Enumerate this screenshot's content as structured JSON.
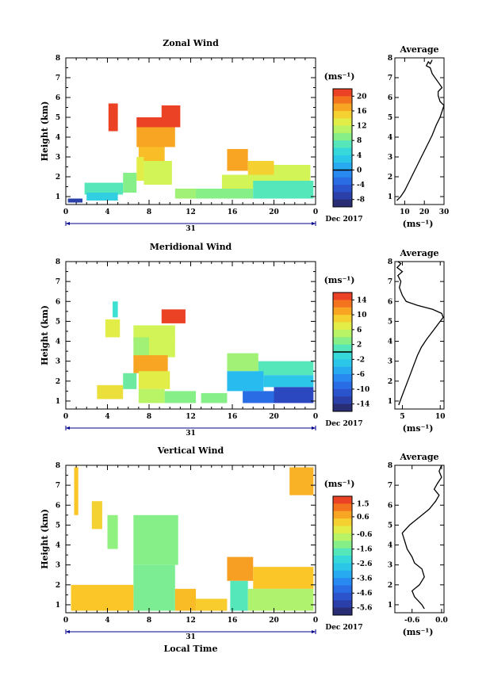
{
  "chart_data": [
    {
      "type": "heatmap",
      "title": "Zonal Wind",
      "xlabel": "",
      "ylabel": "Height (km)",
      "xticks": [
        "0",
        "4",
        "8",
        "12",
        "16",
        "20",
        "0"
      ],
      "yticks": [
        "1",
        "2",
        "3",
        "4",
        "5",
        "6",
        "7",
        "8"
      ],
      "xlim": [
        0,
        24
      ],
      "ylim": [
        0.6,
        8.0
      ],
      "date_label": "31",
      "month_label": "Dec 2017",
      "colorbar": {
        "unit": "(ms⁻¹)",
        "ticks": [
          "20",
          "16",
          "12",
          "8",
          "4",
          "0",
          "-4",
          "-8"
        ],
        "min": -10,
        "max": 22,
        "zero_line": 0
      },
      "patches": [
        {
          "x0": 4.1,
          "x1": 5.0,
          "y0": 4.3,
          "y1": 5.7,
          "v": 21
        },
        {
          "x0": 6.8,
          "x1": 9.5,
          "y0": 4.5,
          "y1": 5.0,
          "v": 21
        },
        {
          "x0": 9.2,
          "x1": 11.0,
          "y0": 4.5,
          "y1": 5.6,
          "v": 21
        },
        {
          "x0": 6.8,
          "x1": 10.5,
          "y0": 3.5,
          "y1": 4.5,
          "v": 17
        },
        {
          "x0": 7.0,
          "x1": 9.5,
          "y0": 2.8,
          "y1": 3.5,
          "v": 16
        },
        {
          "x0": 6.8,
          "x1": 7.5,
          "y0": 1.8,
          "y1": 3.0,
          "v": 13
        },
        {
          "x0": 7.5,
          "x1": 10.2,
          "y0": 1.6,
          "y1": 2.8,
          "v": 12
        },
        {
          "x0": 5.5,
          "x1": 6.8,
          "y0": 1.2,
          "y1": 2.2,
          "v": 9
        },
        {
          "x0": 1.8,
          "x1": 5.5,
          "y0": 1.1,
          "y1": 1.7,
          "v": 7
        },
        {
          "x0": 0.2,
          "x1": 1.6,
          "y0": 0.7,
          "y1": 0.9,
          "v": -7
        },
        {
          "x0": 2.0,
          "x1": 5.0,
          "y0": 0.8,
          "y1": 1.2,
          "v": 4
        },
        {
          "x0": 15.5,
          "x1": 17.5,
          "y0": 2.3,
          "y1": 3.4,
          "v": 17
        },
        {
          "x0": 17.5,
          "x1": 20.0,
          "y0": 2.0,
          "y1": 2.8,
          "v": 15
        },
        {
          "x0": 20.0,
          "x1": 23.5,
          "y0": 1.8,
          "y1": 2.6,
          "v": 12
        },
        {
          "x0": 15.0,
          "x1": 20.0,
          "y0": 1.4,
          "y1": 2.1,
          "v": 12
        },
        {
          "x0": 12.0,
          "x1": 18.0,
          "y0": 0.9,
          "y1": 1.4,
          "v": 9
        },
        {
          "x0": 18.0,
          "x1": 23.8,
          "y0": 0.9,
          "y1": 1.8,
          "v": 7
        },
        {
          "x0": 10.5,
          "x1": 12.5,
          "y0": 0.9,
          "y1": 1.4,
          "v": 10
        }
      ],
      "average_profile": {
        "title": "Average",
        "xlabel": "(ms⁻¹)",
        "xticks": [
          "10",
          "20",
          "30"
        ],
        "xlim": [
          5,
          30
        ],
        "x": [
          6,
          8,
          10,
          12,
          14,
          16,
          18,
          20,
          22,
          24,
          26,
          28,
          29,
          30,
          28,
          27,
          27,
          28,
          29,
          24,
          23,
          21,
          22,
          23,
          24
        ],
        "y": [
          0.8,
          1.0,
          1.3,
          1.7,
          2.1,
          2.5,
          2.9,
          3.3,
          3.7,
          4.1,
          4.6,
          5.0,
          5.3,
          5.6,
          5.8,
          6.1,
          6.3,
          6.4,
          6.5,
          7.2,
          7.5,
          7.6,
          7.8,
          7.7,
          7.9
        ]
      }
    },
    {
      "type": "heatmap",
      "title": "Meridional Wind",
      "xlabel": "",
      "ylabel": "Height (km)",
      "xticks": [
        "0",
        "4",
        "8",
        "12",
        "16",
        "20",
        "0"
      ],
      "yticks": [
        "1",
        "2",
        "3",
        "4",
        "5",
        "6",
        "7",
        "8"
      ],
      "xlim": [
        0,
        24
      ],
      "ylim": [
        0.6,
        8.0
      ],
      "date_label": "31",
      "month_label": "Dec 2017",
      "colorbar": {
        "unit": "(ms⁻¹)",
        "ticks": [
          "14",
          "10",
          "6",
          "2",
          "-2",
          "-6",
          "-10",
          "-14"
        ],
        "min": -16,
        "max": 16,
        "zero_line": 0
      },
      "patches": [
        {
          "x0": 3.8,
          "x1": 5.2,
          "y0": 4.2,
          "y1": 5.1,
          "v": 7
        },
        {
          "x0": 4.5,
          "x1": 5.0,
          "y0": 5.2,
          "y1": 6.0,
          "v": 0
        },
        {
          "x0": 9.2,
          "x1": 11.5,
          "y0": 4.9,
          "y1": 5.6,
          "v": 15
        },
        {
          "x0": 6.5,
          "x1": 10.5,
          "y0": 4.0,
          "y1": 4.8,
          "v": 6
        },
        {
          "x0": 6.5,
          "x1": 8.0,
          "y0": 3.2,
          "y1": 4.2,
          "v": 4
        },
        {
          "x0": 8.0,
          "x1": 10.5,
          "y0": 3.2,
          "y1": 4.2,
          "v": 6
        },
        {
          "x0": 6.5,
          "x1": 9.8,
          "y0": 2.4,
          "y1": 3.3,
          "v": 11
        },
        {
          "x0": 7.0,
          "x1": 10.0,
          "y0": 1.6,
          "y1": 2.5,
          "v": 7
        },
        {
          "x0": 7.0,
          "x1": 9.5,
          "y0": 0.9,
          "y1": 1.6,
          "v": 5
        },
        {
          "x0": 3.0,
          "x1": 5.5,
          "y0": 1.1,
          "y1": 1.8,
          "v": 8
        },
        {
          "x0": 5.5,
          "x1": 6.8,
          "y0": 1.6,
          "y1": 2.4,
          "v": 2
        },
        {
          "x0": 9.5,
          "x1": 12.5,
          "y0": 0.9,
          "y1": 1.5,
          "v": 3
        },
        {
          "x0": 15.5,
          "x1": 18.5,
          "y0": 2.5,
          "y1": 3.4,
          "v": 4
        },
        {
          "x0": 18.5,
          "x1": 23.8,
          "y0": 2.3,
          "y1": 3.0,
          "v": 1
        },
        {
          "x0": 15.5,
          "x1": 19.0,
          "y0": 1.5,
          "y1": 2.5,
          "v": -4
        },
        {
          "x0": 19.0,
          "x1": 23.8,
          "y0": 1.7,
          "y1": 2.3,
          "v": -3
        },
        {
          "x0": 17.0,
          "x1": 20.0,
          "y0": 0.9,
          "y1": 1.5,
          "v": -9
        },
        {
          "x0": 20.0,
          "x1": 23.8,
          "y0": 0.9,
          "y1": 1.7,
          "v": -12
        },
        {
          "x0": 13.0,
          "x1": 15.5,
          "y0": 0.9,
          "y1": 1.4,
          "v": 3
        }
      ],
      "average_profile": {
        "title": "Average",
        "xlabel": "(ms⁻¹)",
        "xticks": [
          "5",
          "10"
        ],
        "xlim": [
          4,
          10.5
        ],
        "x": [
          4.5,
          5.0,
          5.5,
          6.0,
          6.5,
          7.0,
          7.5,
          8.2,
          9.0,
          9.8,
          10.4,
          10.2,
          9.0,
          7.0,
          5.5,
          5.0,
          4.6,
          4.8,
          4.4,
          5.0,
          4.3,
          4.8,
          4.4
        ],
        "y": [
          0.8,
          1.3,
          1.8,
          2.3,
          2.8,
          3.3,
          3.7,
          4.1,
          4.5,
          4.9,
          5.2,
          5.4,
          5.6,
          5.8,
          6.0,
          6.3,
          6.7,
          7.0,
          7.3,
          7.5,
          7.7,
          7.9,
          8.0
        ]
      }
    },
    {
      "type": "heatmap",
      "title": "Vertical Wind",
      "xlabel": "Local Time",
      "ylabel": "Height (km)",
      "xticks": [
        "0",
        "4",
        "8",
        "12",
        "16",
        "20",
        "0"
      ],
      "yticks": [
        "1",
        "2",
        "3",
        "4",
        "5",
        "6",
        "7",
        "8"
      ],
      "xlim": [
        0,
        24
      ],
      "ylim": [
        0.6,
        8.0
      ],
      "date_label": "31",
      "month_label": "Dec 2017",
      "colorbar": {
        "unit": "(ms⁻¹)",
        "ticks": [
          "1.5",
          "0.6",
          "-0.6",
          "-1.6",
          "-2.6",
          "-3.6",
          "-4.6",
          "-5.6"
        ],
        "min": -6.1,
        "max": 2.0
      },
      "patches": [
        {
          "x0": 0.8,
          "x1": 1.2,
          "y0": 5.5,
          "y1": 7.9,
          "v": 0.4
        },
        {
          "x0": 2.5,
          "x1": 3.5,
          "y0": 4.8,
          "y1": 6.2,
          "v": 0.2
        },
        {
          "x0": 4.0,
          "x1": 5.0,
          "y0": 3.8,
          "y1": 5.5,
          "v": -1.2
        },
        {
          "x0": 6.5,
          "x1": 10.8,
          "y0": 3.0,
          "y1": 5.5,
          "v": -1.3
        },
        {
          "x0": 6.5,
          "x1": 10.5,
          "y0": 0.7,
          "y1": 3.0,
          "v": -1.4
        },
        {
          "x0": 0.5,
          "x1": 6.5,
          "y0": 0.7,
          "y1": 2.0,
          "v": 0.4
        },
        {
          "x0": 10.5,
          "x1": 12.5,
          "y0": 0.7,
          "y1": 1.8,
          "v": 0.5
        },
        {
          "x0": 15.5,
          "x1": 18.0,
          "y0": 2.2,
          "y1": 3.4,
          "v": 0.8
        },
        {
          "x0": 18.0,
          "x1": 23.8,
          "y0": 1.8,
          "y1": 2.9,
          "v": 0.4
        },
        {
          "x0": 15.8,
          "x1": 17.5,
          "y0": 0.7,
          "y1": 2.2,
          "v": -1.8
        },
        {
          "x0": 17.5,
          "x1": 23.8,
          "y0": 0.7,
          "y1": 1.8,
          "v": -0.9
        },
        {
          "x0": 21.5,
          "x1": 23.8,
          "y0": 6.5,
          "y1": 7.9,
          "v": 0.6
        },
        {
          "x0": 12.5,
          "x1": 15.5,
          "y0": 0.7,
          "y1": 1.3,
          "v": 0.3
        }
      ],
      "average_profile": {
        "title": "Average",
        "xlabel": "(ms⁻¹)",
        "xticks": [
          "-0.6",
          "0.0"
        ],
        "xlim": [
          -0.95,
          0.05
        ],
        "x": [
          -0.35,
          -0.4,
          -0.55,
          -0.6,
          -0.45,
          -0.35,
          -0.4,
          -0.55,
          -0.6,
          -0.7,
          -0.75,
          -0.8,
          -0.65,
          -0.45,
          -0.25,
          -0.12,
          -0.05,
          -0.15,
          -0.08,
          0.0,
          -0.05,
          0.0
        ],
        "y": [
          0.8,
          1.0,
          1.4,
          1.7,
          2.0,
          2.4,
          2.8,
          3.1,
          3.4,
          3.8,
          4.2,
          4.6,
          5.0,
          5.4,
          5.8,
          6.2,
          6.5,
          6.8,
          7.1,
          7.4,
          7.7,
          8.0
        ]
      }
    }
  ]
}
